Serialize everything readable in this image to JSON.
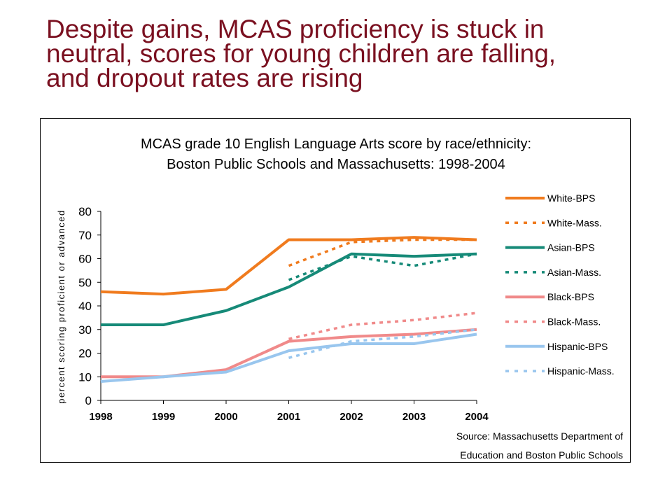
{
  "slide": {
    "title_lines": [
      "Despite gains, MCAS proficiency is stuck in",
      "neutral, scores for young children are falling,",
      "and dropout rates are rising"
    ]
  },
  "chart_data": {
    "type": "line",
    "title_lines": [
      "MCAS grade 10 English Language Arts score by race/ethnicity:",
      "Boston Public Schools and Massachusetts: 1998-2004"
    ],
    "xlabel": "",
    "ylabel": "percent scoring proficient or advanced",
    "x": [
      "1998",
      "1999",
      "2000",
      "2001",
      "2002",
      "2003",
      "2004"
    ],
    "ylim": [
      0,
      80
    ],
    "yticks": [
      0,
      10,
      20,
      30,
      40,
      50,
      60,
      70,
      80
    ],
    "grid": false,
    "legend_position": "right",
    "series": [
      {
        "name": "White-BPS",
        "style": "solid",
        "color": "#f07b1e",
        "values": [
          46,
          45,
          47,
          68,
          68,
          69,
          68
        ]
      },
      {
        "name": "White-Mass.",
        "style": "dotted",
        "color": "#f07b1e",
        "values": [
          null,
          null,
          null,
          57,
          67,
          68,
          68
        ]
      },
      {
        "name": "Asian-BPS",
        "style": "solid",
        "color": "#168a78",
        "values": [
          32,
          32,
          38,
          48,
          62,
          61,
          62
        ]
      },
      {
        "name": "Asian-Mass.",
        "style": "dotted",
        "color": "#168a78",
        "values": [
          null,
          null,
          null,
          51,
          61,
          57,
          62
        ]
      },
      {
        "name": "Black-BPS",
        "style": "solid",
        "color": "#f08a8a",
        "values": [
          10,
          10,
          13,
          25,
          27,
          28,
          30
        ]
      },
      {
        "name": "Black-Mass.",
        "style": "dotted",
        "color": "#f08a8a",
        "values": [
          null,
          null,
          null,
          26,
          32,
          34,
          37
        ]
      },
      {
        "name": "Hispanic-BPS",
        "style": "solid",
        "color": "#99c6ee",
        "values": [
          8,
          10,
          12,
          21,
          24,
          24,
          28
        ]
      },
      {
        "name": "Hispanic-Mass.",
        "style": "dotted",
        "color": "#99c6ee",
        "values": [
          null,
          null,
          null,
          18,
          25,
          27,
          30
        ]
      }
    ],
    "source_lines": [
      "Source: Massachusetts Department of",
      "Education and Boston Public Schools"
    ]
  }
}
